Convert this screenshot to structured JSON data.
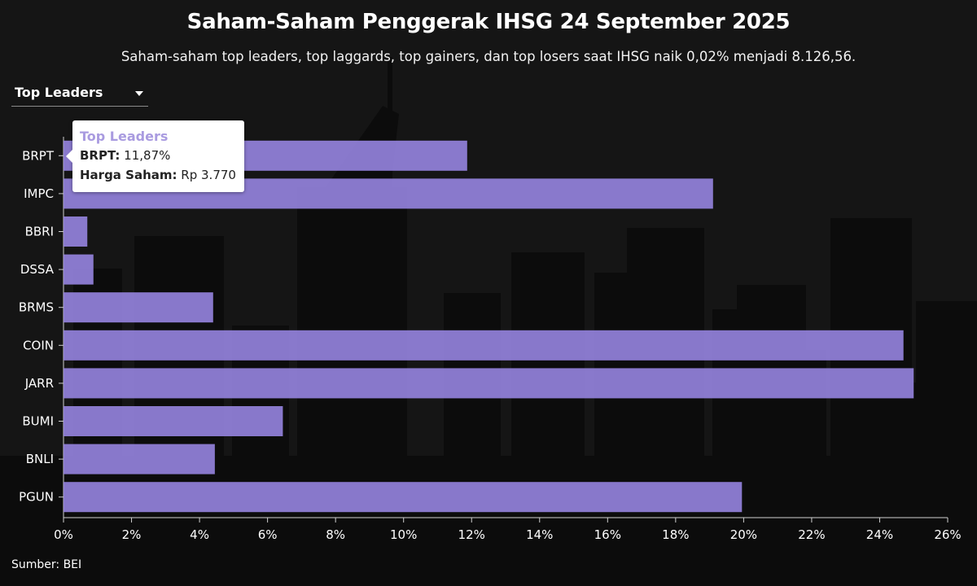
{
  "header": {
    "title": "Saham-Saham Penggerak IHSG 24 September 2025",
    "subtitle": "Saham-saham top leaders, top laggards, top gainers, dan top losers saat IHSG naik 0,02% menjadi 8.126,56."
  },
  "dropdown": {
    "selected": "Top Leaders"
  },
  "tooltip": {
    "title": "Top Leaders",
    "ticker_label": "BRPT:",
    "ticker_value": "11,87%",
    "price_label": "Harga Saham:",
    "price_value": "Rp 3.770"
  },
  "source": "Sumber: BEI",
  "colors": {
    "bar": "#9a88e6",
    "background": "#151515"
  },
  "chart_data": {
    "type": "bar",
    "orientation": "horizontal",
    "categories": [
      "BRPT",
      "IMPC",
      "BBRI",
      "DSSA",
      "BRMS",
      "COIN",
      "JARR",
      "BUMI",
      "BNLI",
      "PGUN"
    ],
    "values": [
      11.87,
      19.1,
      0.7,
      0.88,
      4.4,
      24.7,
      25.0,
      6.45,
      4.45,
      19.95
    ],
    "x_ticks": [
      "0%",
      "2%",
      "4%",
      "6%",
      "8%",
      "10%",
      "12%",
      "14%",
      "16%",
      "18%",
      "20%",
      "22%",
      "24%",
      "26%"
    ],
    "xlim": [
      0,
      26
    ],
    "grid": false
  }
}
